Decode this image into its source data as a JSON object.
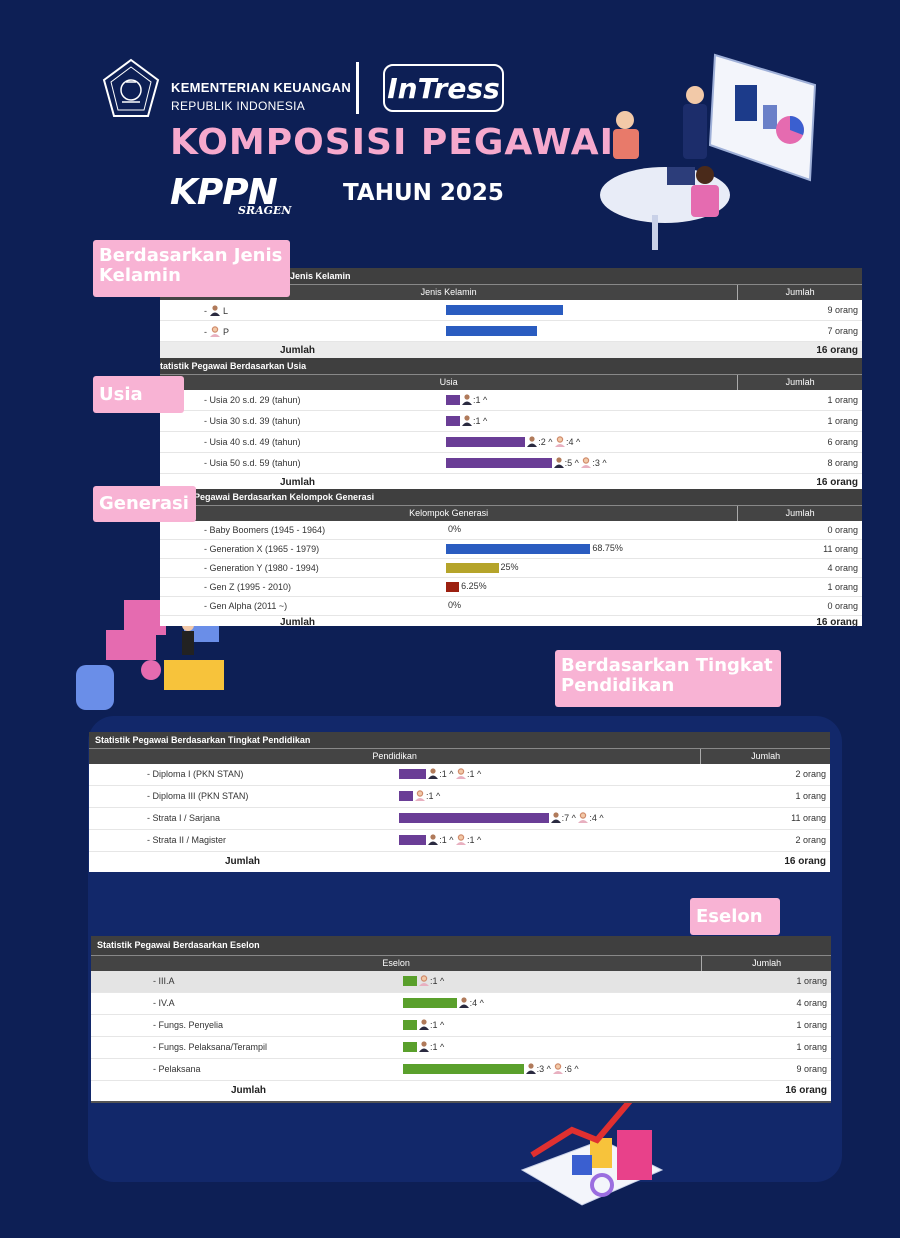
{
  "header": {
    "ministry_line1": "KEMENTERIAN KEUANGAN",
    "ministry_line2": "REPUBLIK INDONESIA",
    "brand": "InTress",
    "title": "KOMPOSISI PEGAWAI",
    "office": "KPPN",
    "office_city": "SRAGEN",
    "year": "TAHUN 2025"
  },
  "labels": {
    "gender": "Berdasarkan Jenis Kelamin",
    "usia": "Usia",
    "generasi": "Generasi",
    "pendidikan": "Berdasarkan Tingkat Pendidikan",
    "eselon": "Eselon"
  },
  "colors": {
    "background": "#0d1f55",
    "pink": "#f8b3d4",
    "bar_blue": "#2a5cc0",
    "bar_purple": "#6a3d96",
    "bar_green": "#5aa02c",
    "bar_olive": "#b5a42a",
    "bar_red": "#9c2010"
  },
  "gender": {
    "title": "Jenis Kelamin",
    "col1": "Jenis Kelamin",
    "col2": "Jumlah",
    "rows": [
      {
        "label": "L",
        "icon": "male-icon",
        "value": 9,
        "count": "9 orang"
      },
      {
        "label": "P",
        "icon": "female-icon",
        "value": 7,
        "count": "7 orang"
      }
    ],
    "total_label": "Jumlah",
    "total": "16 orang"
  },
  "usia": {
    "title": "tatistik Pegawai Berdasarkan Usia",
    "col1": "Usia",
    "col2": "Jumlah",
    "rows": [
      {
        "label": "- Usia 20 s.d. 29 (tahun)",
        "value": 1,
        "ann": ":1 ^",
        "count": "1 orang"
      },
      {
        "label": "- Usia 30 s.d. 39 (tahun)",
        "value": 1,
        "ann": ":1 ^",
        "count": "1 orang"
      },
      {
        "label": "- Usia 40 s.d. 49 (tahun)",
        "value": 6,
        "ann_m": ":2 ^",
        "ann_f": ":4 ^",
        "count": "6 orang"
      },
      {
        "label": "- Usia 50 s.d. 59 (tahun)",
        "value": 8,
        "ann_m": ":5 ^",
        "ann_f": ":3 ^",
        "count": "8 orang"
      }
    ],
    "total_label": "Jumlah",
    "total": "16 orang"
  },
  "generasi": {
    "title": "Pegawai Berdasarkan Kelompok Generasi",
    "col1": "Kelompok Generasi",
    "col2": "Jumlah",
    "rows": [
      {
        "label": "- Baby Boomers (1945 - 1964)",
        "value": 0,
        "pct": "0%",
        "count": "0 orang"
      },
      {
        "label": "- Generation X (1965 - 1979)",
        "value": 68.75,
        "pct": "68.75%",
        "count": "11 orang"
      },
      {
        "label": "- Generation Y (1980 - 1994)",
        "value": 25,
        "pct": "25%",
        "count": "4 orang"
      },
      {
        "label": "- Gen Z (1995 - 2010)",
        "value": 6.25,
        "pct": "6.25%",
        "count": "1 orang"
      },
      {
        "label": "- Gen Alpha (2011 ~)",
        "value": 0,
        "pct": "0%",
        "count": "0 orang"
      }
    ],
    "total_label": "Jumlah",
    "total": "16 orang"
  },
  "pendidikan": {
    "title": "Statistik Pegawai Berdasarkan Tingkat Pendidikan",
    "col1": "Pendidikan",
    "col2": "Jumlah",
    "rows": [
      {
        "label": "- Diploma I (PKN STAN)",
        "value": 2,
        "ann_m": ":1 ^",
        "ann_f": ":1 ^",
        "count": "2 orang"
      },
      {
        "label": "- Diploma III (PKN STAN)",
        "value": 1,
        "ann_f": ":1 ^",
        "count": "1 orang"
      },
      {
        "label": "- Strata I / Sarjana",
        "value": 11,
        "ann_m": ":7 ^",
        "ann_f": ":4 ^",
        "count": "11 orang"
      },
      {
        "label": "- Strata II / Magister",
        "value": 2,
        "ann_m": ":1 ^",
        "ann_f": ":1 ^",
        "count": "2 orang"
      }
    ],
    "total_label": "Jumlah",
    "total": "16 orang"
  },
  "eselon": {
    "title": "Statistik Pegawai Berdasarkan Eselon",
    "col1": "Eselon",
    "col2": "Jumlah",
    "rows": [
      {
        "label": "- III.A",
        "value": 1,
        "ann_f": ":1 ^",
        "count": "1 orang"
      },
      {
        "label": "- IV.A",
        "value": 4,
        "ann_m": ":4 ^",
        "count": "4 orang"
      },
      {
        "label": "- Fungs. Penyelia",
        "value": 1,
        "ann_m": ":1 ^",
        "count": "1 orang"
      },
      {
        "label": "- Fungs. Pelaksana/Terampil",
        "value": 1,
        "ann_m": ":1 ^",
        "count": "1 orang"
      },
      {
        "label": "- Pelaksana",
        "value": 9,
        "ann_m": ":3 ^",
        "ann_f": ":6 ^",
        "count": "9 orang"
      }
    ],
    "total_label": "Jumlah",
    "total": "16 orang"
  }
}
